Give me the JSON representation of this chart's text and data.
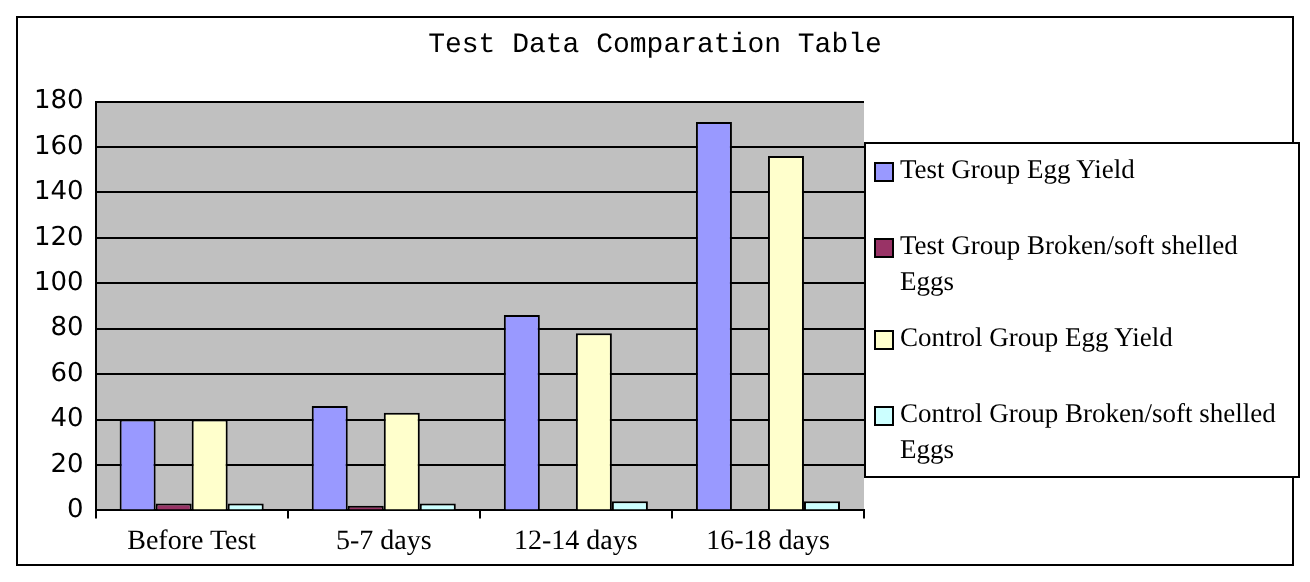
{
  "chart_data": {
    "type": "bar",
    "title": "Test Data Comparation Table",
    "categories": [
      "Before Test",
      "5-7 days",
      "12-14 days",
      "16-18 days"
    ],
    "series": [
      {
        "name": "Test Group Egg Yield",
        "color": "#9999ff",
        "values": [
          40,
          46,
          86,
          171
        ]
      },
      {
        "name": "Test Group Broken/soft shelled Eggs",
        "color": "#993366",
        "values": [
          3,
          2,
          0,
          0
        ]
      },
      {
        "name": "Control Group Egg Yield",
        "color": "#ffffcc",
        "values": [
          40,
          43,
          78,
          156
        ]
      },
      {
        "name": "Control Group Broken/soft shelled Eggs",
        "color": "#ccffff",
        "values": [
          3,
          3,
          4,
          4
        ]
      }
    ],
    "ylim": [
      0,
      180
    ],
    "yticks": [
      0,
      20,
      40,
      60,
      80,
      100,
      120,
      140,
      160,
      180
    ],
    "grid": "y",
    "legend": "right"
  }
}
